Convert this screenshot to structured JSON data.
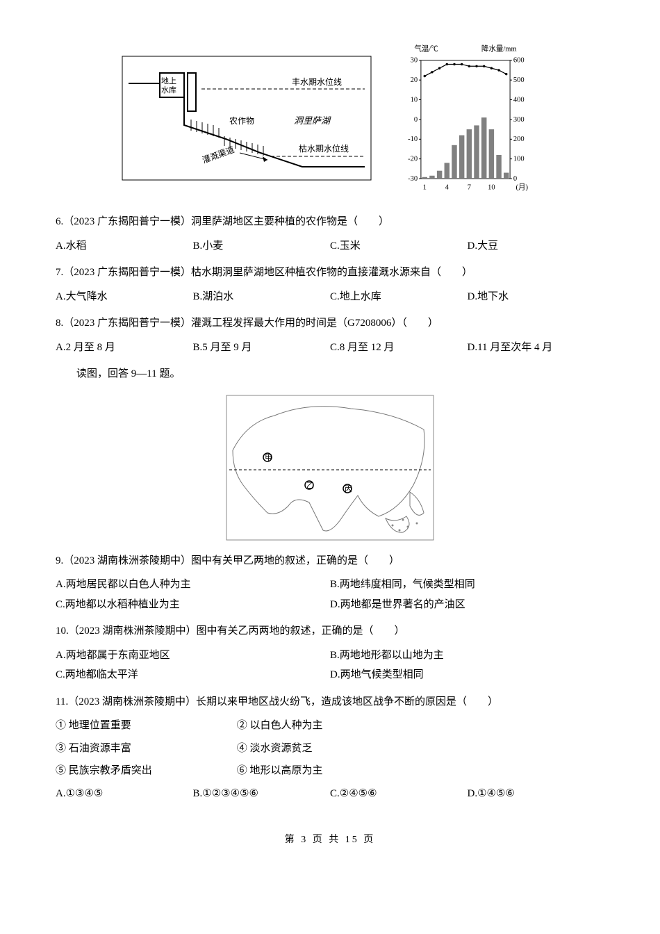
{
  "figure1": {
    "diagram": {
      "labels": {
        "reservoir": "地上\n水库",
        "highLine": "丰水期水位线",
        "crops": "农作物",
        "lake": "洞里萨湖",
        "channel": "灌溉渠道",
        "lowLine": "枯水期水位线"
      },
      "colors": {
        "border": "#000",
        "water": "#ffffff",
        "line": "#000"
      }
    },
    "climate_chart": {
      "type": "climograph",
      "title_left": "气温/℃",
      "title_right": "降水量/mm",
      "x_label": "(月)",
      "x_ticks": [
        1,
        4,
        7,
        10
      ],
      "temp_ylim": [
        -30,
        30
      ],
      "temp_step": 10,
      "precip_ylim": [
        0,
        600
      ],
      "precip_step": 100,
      "months": [
        1,
        2,
        3,
        4,
        5,
        6,
        7,
        8,
        9,
        10,
        11,
        12
      ],
      "temperature": [
        22,
        24,
        26,
        28,
        28,
        28,
        27,
        27,
        27,
        26,
        25,
        23
      ],
      "precipitation": [
        8,
        15,
        40,
        80,
        170,
        220,
        250,
        270,
        310,
        250,
        120,
        30
      ],
      "bar_color": "#808080",
      "line_color": "#000000",
      "axis_color": "#000000",
      "font_size": 11
    }
  },
  "q6": {
    "text": "6.（2023 广东揭阳普宁一模）洞里萨湖地区主要种植的农作物是（　　）",
    "opts": {
      "A": "A.水稻",
      "B": "B.小麦",
      "C": "C.玉米",
      "D": "D.大豆"
    }
  },
  "q7": {
    "text": "7.（2023 广东揭阳普宁一模）枯水期洞里萨湖地区种植农作物的直接灌溉水源来自（　　）",
    "opts": {
      "A": "A.大气降水",
      "B": "B.湖泊水",
      "C": "C.地上水库",
      "D": "D.地下水"
    }
  },
  "q8": {
    "text": "8.（2023 广东揭阳普宁一模）灌溉工程发挥最大作用的时间是（G7208006）（　　）",
    "opts": {
      "A": "A.2 月至 8 月",
      "B": "B.5 月至 9 月",
      "C": "C.8 月至 12 月",
      "D": "D.11 月至次年 4 月"
    }
  },
  "reading2": "读图，回答 9—11 题。",
  "map": {
    "labels": {
      "jia": "甲",
      "yi": "乙",
      "bing": "丙"
    },
    "sea_color": "#ffffff",
    "land_color": "#ffffff",
    "border_color": "#666666",
    "tropic_color": "#000000"
  },
  "q9": {
    "text": "9.（2023 湖南株洲茶陵期中）图中有关甲乙两地的叙述，正确的是（　　）",
    "opts": {
      "A": "A.两地居民都以白色人种为主",
      "B": "B.两地纬度相同，气候类型相同",
      "C": "C.两地都以水稻种植业为主",
      "D": "D.两地都是世界著名的产油区"
    }
  },
  "q10": {
    "text": "10.（2023 湖南株洲茶陵期中）图中有关乙丙两地的叙述，正确的是（　　）",
    "opts": {
      "A": "A.两地都属于东南亚地区",
      "B": "B.两地地形都以山地为主",
      "C": "C.两地都临太平洋",
      "D": "D.两地气候类型相同"
    }
  },
  "q11": {
    "text": "11.（2023 湖南株洲茶陵期中）长期以来甲地区战火纷飞，造成该地区战争不断的原因是（　　）",
    "stmts": {
      "s1": "① 地理位置重要",
      "s2": "② 以白色人种为主",
      "s3": "③ 石油资源丰富",
      "s4": "④ 淡水资源贫乏",
      "s5": "⑤ 民族宗教矛盾突出",
      "s6": "⑥ 地形以高原为主"
    },
    "opts": {
      "A": "A.①③④⑤",
      "B": "B.①②③④⑤⑥",
      "C": "C.②④⑤⑥",
      "D": "D.①④⑤⑥"
    }
  },
  "footer": "第 3 页 共 15 页"
}
